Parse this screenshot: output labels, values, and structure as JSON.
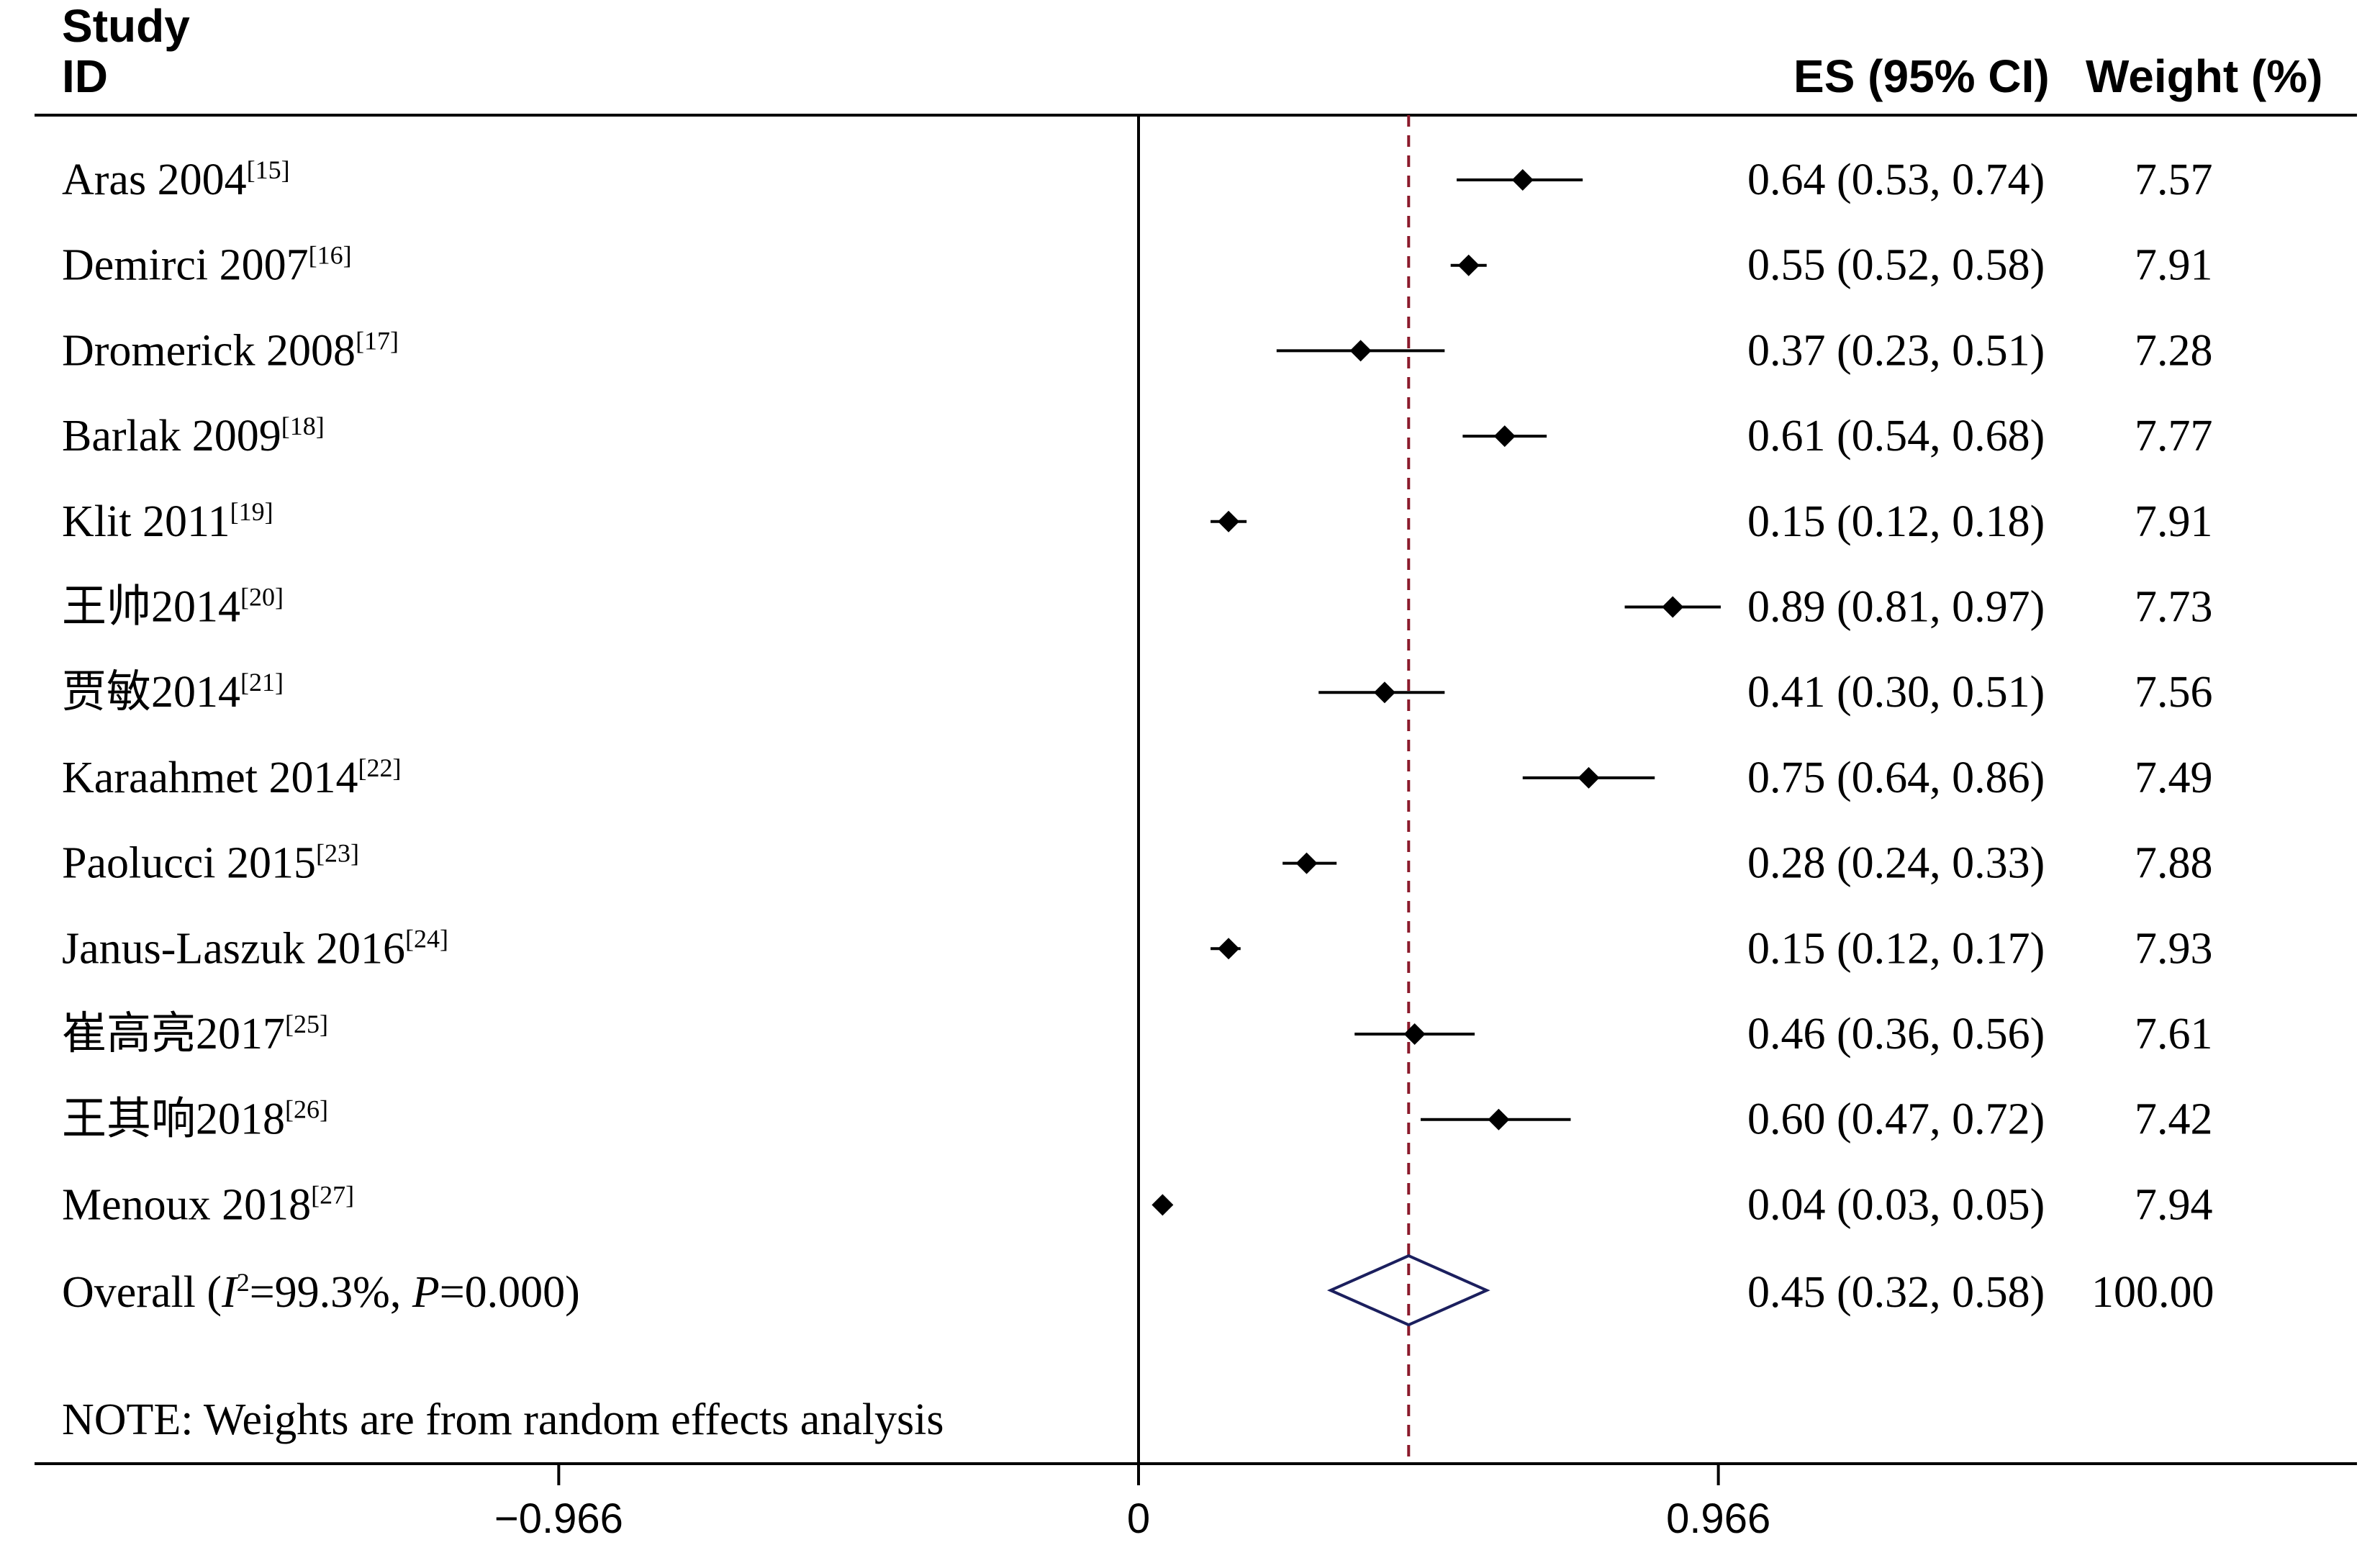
{
  "chart_data": {
    "type": "forest",
    "headers": {
      "study_line1": "Study",
      "study_line2": "ID",
      "es": "ES (95% CI)",
      "weight": "Weight (%)"
    },
    "studies": [
      {
        "name": "Aras 2004",
        "ref": "[15]",
        "es": 0.64,
        "lo": 0.53,
        "hi": 0.74,
        "es_text": "0.64 (0.53, 0.74)",
        "weight": "7.57"
      },
      {
        "name": "Demirci 2007",
        "ref": "[16]",
        "es": 0.55,
        "lo": 0.52,
        "hi": 0.58,
        "es_text": "0.55 (0.52, 0.58)",
        "weight": "7.91"
      },
      {
        "name": "Dromerick 2008",
        "ref": "[17]",
        "es": 0.37,
        "lo": 0.23,
        "hi": 0.51,
        "es_text": "0.37 (0.23, 0.51)",
        "weight": "7.28"
      },
      {
        "name": "Barlak 2009",
        "ref": "[18]",
        "es": 0.61,
        "lo": 0.54,
        "hi": 0.68,
        "es_text": "0.61 (0.54, 0.68)",
        "weight": "7.77"
      },
      {
        "name": "Klit 2011",
        "ref": "[19]",
        "es": 0.15,
        "lo": 0.12,
        "hi": 0.18,
        "es_text": "0.15 (0.12, 0.18)",
        "weight": "7.91"
      },
      {
        "name": "王帅2014",
        "ref": "[20]",
        "es": 0.89,
        "lo": 0.81,
        "hi": 0.97,
        "es_text": "0.89 (0.81, 0.97)",
        "weight": "7.73"
      },
      {
        "name": "贾敏2014",
        "ref": "[21]",
        "es": 0.41,
        "lo": 0.3,
        "hi": 0.51,
        "es_text": "0.41 (0.30, 0.51)",
        "weight": "7.56"
      },
      {
        "name": "Karaahmet 2014",
        "ref": "[22]",
        "es": 0.75,
        "lo": 0.64,
        "hi": 0.86,
        "es_text": "0.75 (0.64, 0.86)",
        "weight": "7.49"
      },
      {
        "name": "Paolucci 2015",
        "ref": "[23]",
        "es": 0.28,
        "lo": 0.24,
        "hi": 0.33,
        "es_text": "0.28 (0.24, 0.33)",
        "weight": "7.88"
      },
      {
        "name": "Janus-Laszuk 2016",
        "ref": "[24]",
        "es": 0.15,
        "lo": 0.12,
        "hi": 0.17,
        "es_text": "0.15 (0.12, 0.17)",
        "weight": "7.93"
      },
      {
        "name": "崔高亮2017",
        "ref": "[25]",
        "es": 0.46,
        "lo": 0.36,
        "hi": 0.56,
        "es_text": "0.46 (0.36, 0.56)",
        "weight": "7.61"
      },
      {
        "name": "王其响2018",
        "ref": "[26]",
        "es": 0.6,
        "lo": 0.47,
        "hi": 0.72,
        "es_text": "0.60 (0.47, 0.72)",
        "weight": "7.42"
      },
      {
        "name": "Menoux 2018",
        "ref": "[27]",
        "es": 0.04,
        "lo": 0.03,
        "hi": 0.05,
        "es_text": "0.04 (0.03, 0.05)",
        "weight": "7.94"
      }
    ],
    "overall": {
      "label_prefix": "Overall  (",
      "i2_symbol": "I",
      "i2_sup": "2",
      "i2_value": "=99.3%, ",
      "p_symbol": "P",
      "p_value": "=0.000)",
      "es": 0.45,
      "lo": 0.32,
      "hi": 0.58,
      "es_text": "0.45 (0.32, 0.58)",
      "weight": "100.00"
    },
    "note": "NOTE: Weights are from random effects analysis",
    "x_ticks": [
      {
        "value": -0.966,
        "label": "−0.966"
      },
      {
        "value": 0,
        "label": "0"
      },
      {
        "value": 0.966,
        "label": "0.966"
      }
    ],
    "xlim": [
      -1.832,
      2.0
    ],
    "null_line": 0,
    "reference_line": 0.45,
    "colors": {
      "marker": "#000000",
      "ci_line": "#000000",
      "overall_diamond": "#1b1f5e",
      "reference_line": "#8b1a2b"
    }
  }
}
